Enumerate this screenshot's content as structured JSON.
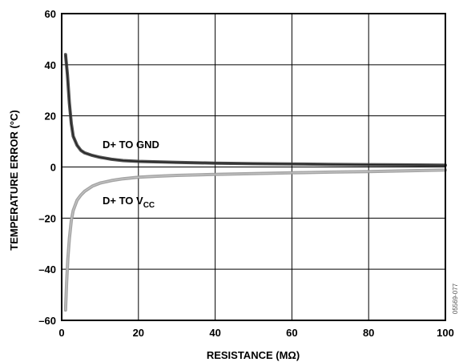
{
  "chart_data": {
    "type": "line",
    "title": "",
    "xlabel": "RESISTANCE (MΩ)",
    "ylabel": "TEMPERATURE ERROR (°C)",
    "xlim": [
      0,
      100
    ],
    "ylim": [
      -60,
      60
    ],
    "x_ticks": [
      0,
      20,
      40,
      60,
      80,
      100
    ],
    "x_tick_labels": [
      "0",
      "20",
      "40",
      "60",
      "80",
      "100"
    ],
    "y_ticks": [
      60,
      40,
      20,
      0,
      -20,
      -40,
      -60
    ],
    "y_tick_labels": [
      "60",
      "40",
      "20",
      "0",
      "–20",
      "–40",
      "–60"
    ],
    "grid": true,
    "legend": "none",
    "figure_id": "05569-077",
    "series": [
      {
        "label_main": "D+ TO GND",
        "label_sub": "",
        "color": "#404040",
        "x": [
          1,
          1.5,
          2,
          2.5,
          3,
          4,
          5,
          6,
          8,
          10,
          13,
          16,
          20,
          25,
          30,
          40,
          50,
          60,
          70,
          80,
          90,
          100
        ],
        "y": [
          44,
          36,
          25,
          17,
          12,
          8.5,
          6.5,
          5.5,
          4.5,
          3.8,
          3.0,
          2.5,
          2.2,
          2.0,
          1.8,
          1.5,
          1.3,
          1.2,
          1.0,
          0.9,
          0.8,
          0.7
        ]
      },
      {
        "label_main": "D+ TO V",
        "label_sub": "CC",
        "color": "#9a9a9a",
        "x": [
          1,
          1.3,
          1.6,
          2,
          2.5,
          3,
          4,
          5,
          6,
          8,
          10,
          13,
          16,
          20,
          25,
          30,
          40,
          50,
          60,
          70,
          80,
          90,
          100
        ],
        "y": [
          -56,
          -45,
          -36,
          -28,
          -21,
          -17,
          -13,
          -11,
          -9.5,
          -7.5,
          -6.3,
          -5.3,
          -4.6,
          -4.0,
          -3.6,
          -3.3,
          -2.9,
          -2.6,
          -2.3,
          -2.0,
          -1.8,
          -1.5,
          -1.2
        ]
      }
    ]
  }
}
